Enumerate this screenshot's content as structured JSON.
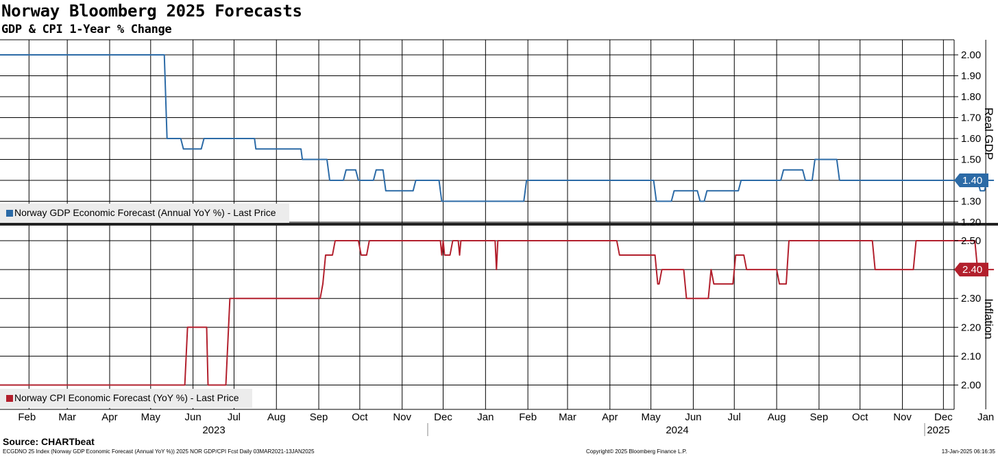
{
  "header": {
    "title": "Norway Bloomberg 2025 Forecasts",
    "subtitle": "GDP & CPI 1-Year % Change"
  },
  "footer": {
    "source": "Source: CHARTbeat",
    "left": "ECGDNO 25 Index (Norway GDP Economic Forecast (Annual YoY %)) 2025 NOR GDP/CPI Fcst  Daily 03MAR2021-13JAN2025",
    "mid": "Copyright© 2025 Bloomberg Finance L.P.",
    "right": "13-Jan-2025 06:16:35"
  },
  "colors": {
    "gdp": "#2b6aa6",
    "cpi": "#b21f2c",
    "grid": "#000000"
  },
  "chart_data": [
    {
      "type": "line",
      "panel": "top",
      "ylabel": "Real GDP",
      "ylim": [
        1.18,
        2.07
      ],
      "yticks": [
        "2.00",
        "1.90",
        "1.80",
        "1.70",
        "1.60",
        "1.50",
        "1.40",
        "1.30",
        "1.20"
      ],
      "legend": "Norway GDP Economic Forecast (Annual YoY %) - Last Price",
      "legend_position": "bottom-left",
      "last_value": "1.40",
      "series": [
        {
          "name": "Norway GDP Economic Forecast (Annual YoY %) - Last Price",
          "points": [
            [
              "2022-12-31",
              2.0
            ],
            [
              "2023-05-10",
              2.0
            ],
            [
              "2023-05-12",
              1.6
            ],
            [
              "2023-05-22",
              1.6
            ],
            [
              "2023-05-24",
              1.55
            ],
            [
              "2023-06-06",
              1.55
            ],
            [
              "2023-06-08",
              1.6
            ],
            [
              "2023-07-15",
              1.6
            ],
            [
              "2023-07-16",
              1.55
            ],
            [
              "2023-08-18",
              1.55
            ],
            [
              "2023-08-19",
              1.5
            ],
            [
              "2023-09-06",
              1.5
            ],
            [
              "2023-09-08",
              1.4
            ],
            [
              "2023-09-18",
              1.4
            ],
            [
              "2023-09-20",
              1.45
            ],
            [
              "2023-09-27",
              1.45
            ],
            [
              "2023-09-29",
              1.4
            ],
            [
              "2023-10-10",
              1.4
            ],
            [
              "2023-10-12",
              1.45
            ],
            [
              "2023-10-17",
              1.45
            ],
            [
              "2023-10-19",
              1.35
            ],
            [
              "2023-11-08",
              1.35
            ],
            [
              "2023-11-10",
              1.4
            ],
            [
              "2023-11-27",
              1.4
            ],
            [
              "2023-11-29",
              1.3
            ],
            [
              "2024-01-28",
              1.3
            ],
            [
              "2024-01-30",
              1.4
            ],
            [
              "2024-05-02",
              1.4
            ],
            [
              "2024-05-04",
              1.3
            ],
            [
              "2024-05-15",
              1.3
            ],
            [
              "2024-05-17",
              1.35
            ],
            [
              "2024-06-03",
              1.35
            ],
            [
              "2024-06-05",
              1.3
            ],
            [
              "2024-06-08",
              1.3
            ],
            [
              "2024-06-10",
              1.35
            ],
            [
              "2024-07-03",
              1.35
            ],
            [
              "2024-07-05",
              1.4
            ],
            [
              "2024-08-03",
              1.4
            ],
            [
              "2024-08-05",
              1.45
            ],
            [
              "2024-08-19",
              1.45
            ],
            [
              "2024-08-21",
              1.4
            ],
            [
              "2024-08-26",
              1.4
            ],
            [
              "2024-08-28",
              1.5
            ],
            [
              "2024-09-13",
              1.5
            ],
            [
              "2024-09-15",
              1.4
            ],
            [
              "2024-12-25",
              1.4
            ],
            [
              "2024-12-27",
              1.35
            ],
            [
              "2024-12-30",
              1.35
            ],
            [
              "2025-01-01",
              1.4
            ],
            [
              "2025-01-06",
              1.4
            ]
          ]
        }
      ]
    },
    {
      "type": "line",
      "panel": "bottom",
      "ylabel": "Inflation",
      "ylim": [
        1.92,
        2.53
      ],
      "yticks": [
        "2.50",
        "2.40",
        "2.30",
        "2.20",
        "2.10",
        "2.00"
      ],
      "legend": "Norway CPI Economic Forecast (YoY %) - Last Price",
      "legend_position": "bottom-left",
      "last_value": "2.40",
      "series": [
        {
          "name": "Norway CPI Economic Forecast (YoY %) - Last Price",
          "points": [
            [
              "2022-12-31",
              2.0
            ],
            [
              "2023-05-25",
              2.0
            ],
            [
              "2023-05-27",
              2.2
            ],
            [
              "2023-06-10",
              2.2
            ],
            [
              "2023-06-11",
              2.0
            ],
            [
              "2023-06-24",
              2.0
            ],
            [
              "2023-06-27",
              2.3
            ],
            [
              "2023-09-01",
              2.3
            ],
            [
              "2023-09-03",
              2.35
            ],
            [
              "2023-09-05",
              2.45
            ],
            [
              "2023-09-10",
              2.45
            ],
            [
              "2023-09-12",
              2.5
            ],
            [
              "2023-09-29",
              2.5
            ],
            [
              "2023-10-01",
              2.45
            ],
            [
              "2023-10-05",
              2.45
            ],
            [
              "2023-10-07",
              2.5
            ],
            [
              "2023-11-28",
              2.5
            ],
            [
              "2023-11-29",
              2.45
            ],
            [
              "2023-11-30",
              2.5
            ],
            [
              "2023-12-01",
              2.45
            ],
            [
              "2023-12-05",
              2.45
            ],
            [
              "2023-12-07",
              2.5
            ],
            [
              "2023-12-11",
              2.5
            ],
            [
              "2023-12-12",
              2.45
            ],
            [
              "2023-12-13",
              2.5
            ],
            [
              "2024-01-07",
              2.5
            ],
            [
              "2024-01-08",
              2.4
            ],
            [
              "2024-01-09",
              2.5
            ],
            [
              "2024-04-05",
              2.5
            ],
            [
              "2024-04-07",
              2.45
            ],
            [
              "2024-05-03",
              2.45
            ],
            [
              "2024-05-05",
              2.35
            ],
            [
              "2024-05-06",
              2.35
            ],
            [
              "2024-05-08",
              2.4
            ],
            [
              "2024-05-24",
              2.4
            ],
            [
              "2024-05-26",
              2.3
            ],
            [
              "2024-06-11",
              2.3
            ],
            [
              "2024-06-13",
              2.4
            ],
            [
              "2024-06-15",
              2.35
            ],
            [
              "2024-06-29",
              2.35
            ],
            [
              "2024-07-01",
              2.45
            ],
            [
              "2024-07-07",
              2.45
            ],
            [
              "2024-07-09",
              2.4
            ],
            [
              "2024-07-31",
              2.4
            ],
            [
              "2024-08-02",
              2.35
            ],
            [
              "2024-08-07",
              2.35
            ],
            [
              "2024-08-09",
              2.5
            ],
            [
              "2024-10-09",
              2.5
            ],
            [
              "2024-10-11",
              2.4
            ],
            [
              "2024-11-08",
              2.4
            ],
            [
              "2024-11-10",
              2.5
            ],
            [
              "2024-12-23",
              2.5
            ],
            [
              "2024-12-25",
              2.4
            ],
            [
              "2025-01-06",
              2.4
            ]
          ]
        }
      ]
    }
  ],
  "x_axis": {
    "months": [
      {
        "label": "Feb",
        "date": "2023-01-31"
      },
      {
        "label": "Mar",
        "date": "2023-02-28"
      },
      {
        "label": "Apr",
        "date": "2023-03-31"
      },
      {
        "label": "May",
        "date": "2023-04-30"
      },
      {
        "label": "Jun",
        "date": "2023-05-31"
      },
      {
        "label": "Jul",
        "date": "2023-06-30"
      },
      {
        "label": "Aug",
        "date": "2023-07-31"
      },
      {
        "label": "Sep",
        "date": "2023-08-31"
      },
      {
        "label": "Oct",
        "date": "2023-09-30"
      },
      {
        "label": "Nov",
        "date": "2023-10-31"
      },
      {
        "label": "Dec",
        "date": "2023-11-30"
      },
      {
        "label": "Jan",
        "date": "2023-12-31"
      },
      {
        "label": "Feb",
        "date": "2024-01-31"
      },
      {
        "label": "Mar",
        "date": "2024-02-29"
      },
      {
        "label": "Apr",
        "date": "2024-03-31"
      },
      {
        "label": "May",
        "date": "2024-04-30"
      },
      {
        "label": "Jun",
        "date": "2024-05-31"
      },
      {
        "label": "Jul",
        "date": "2024-06-30"
      },
      {
        "label": "Aug",
        "date": "2024-07-31"
      },
      {
        "label": "Sep",
        "date": "2024-08-31"
      },
      {
        "label": "Oct",
        "date": "2024-09-30"
      },
      {
        "label": "Nov",
        "date": "2024-10-31"
      },
      {
        "label": "Dec",
        "date": "2024-11-30"
      },
      {
        "label": "Jan",
        "date": "2024-12-31"
      }
    ],
    "years": [
      "2023",
      "2024",
      "2025"
    ]
  }
}
